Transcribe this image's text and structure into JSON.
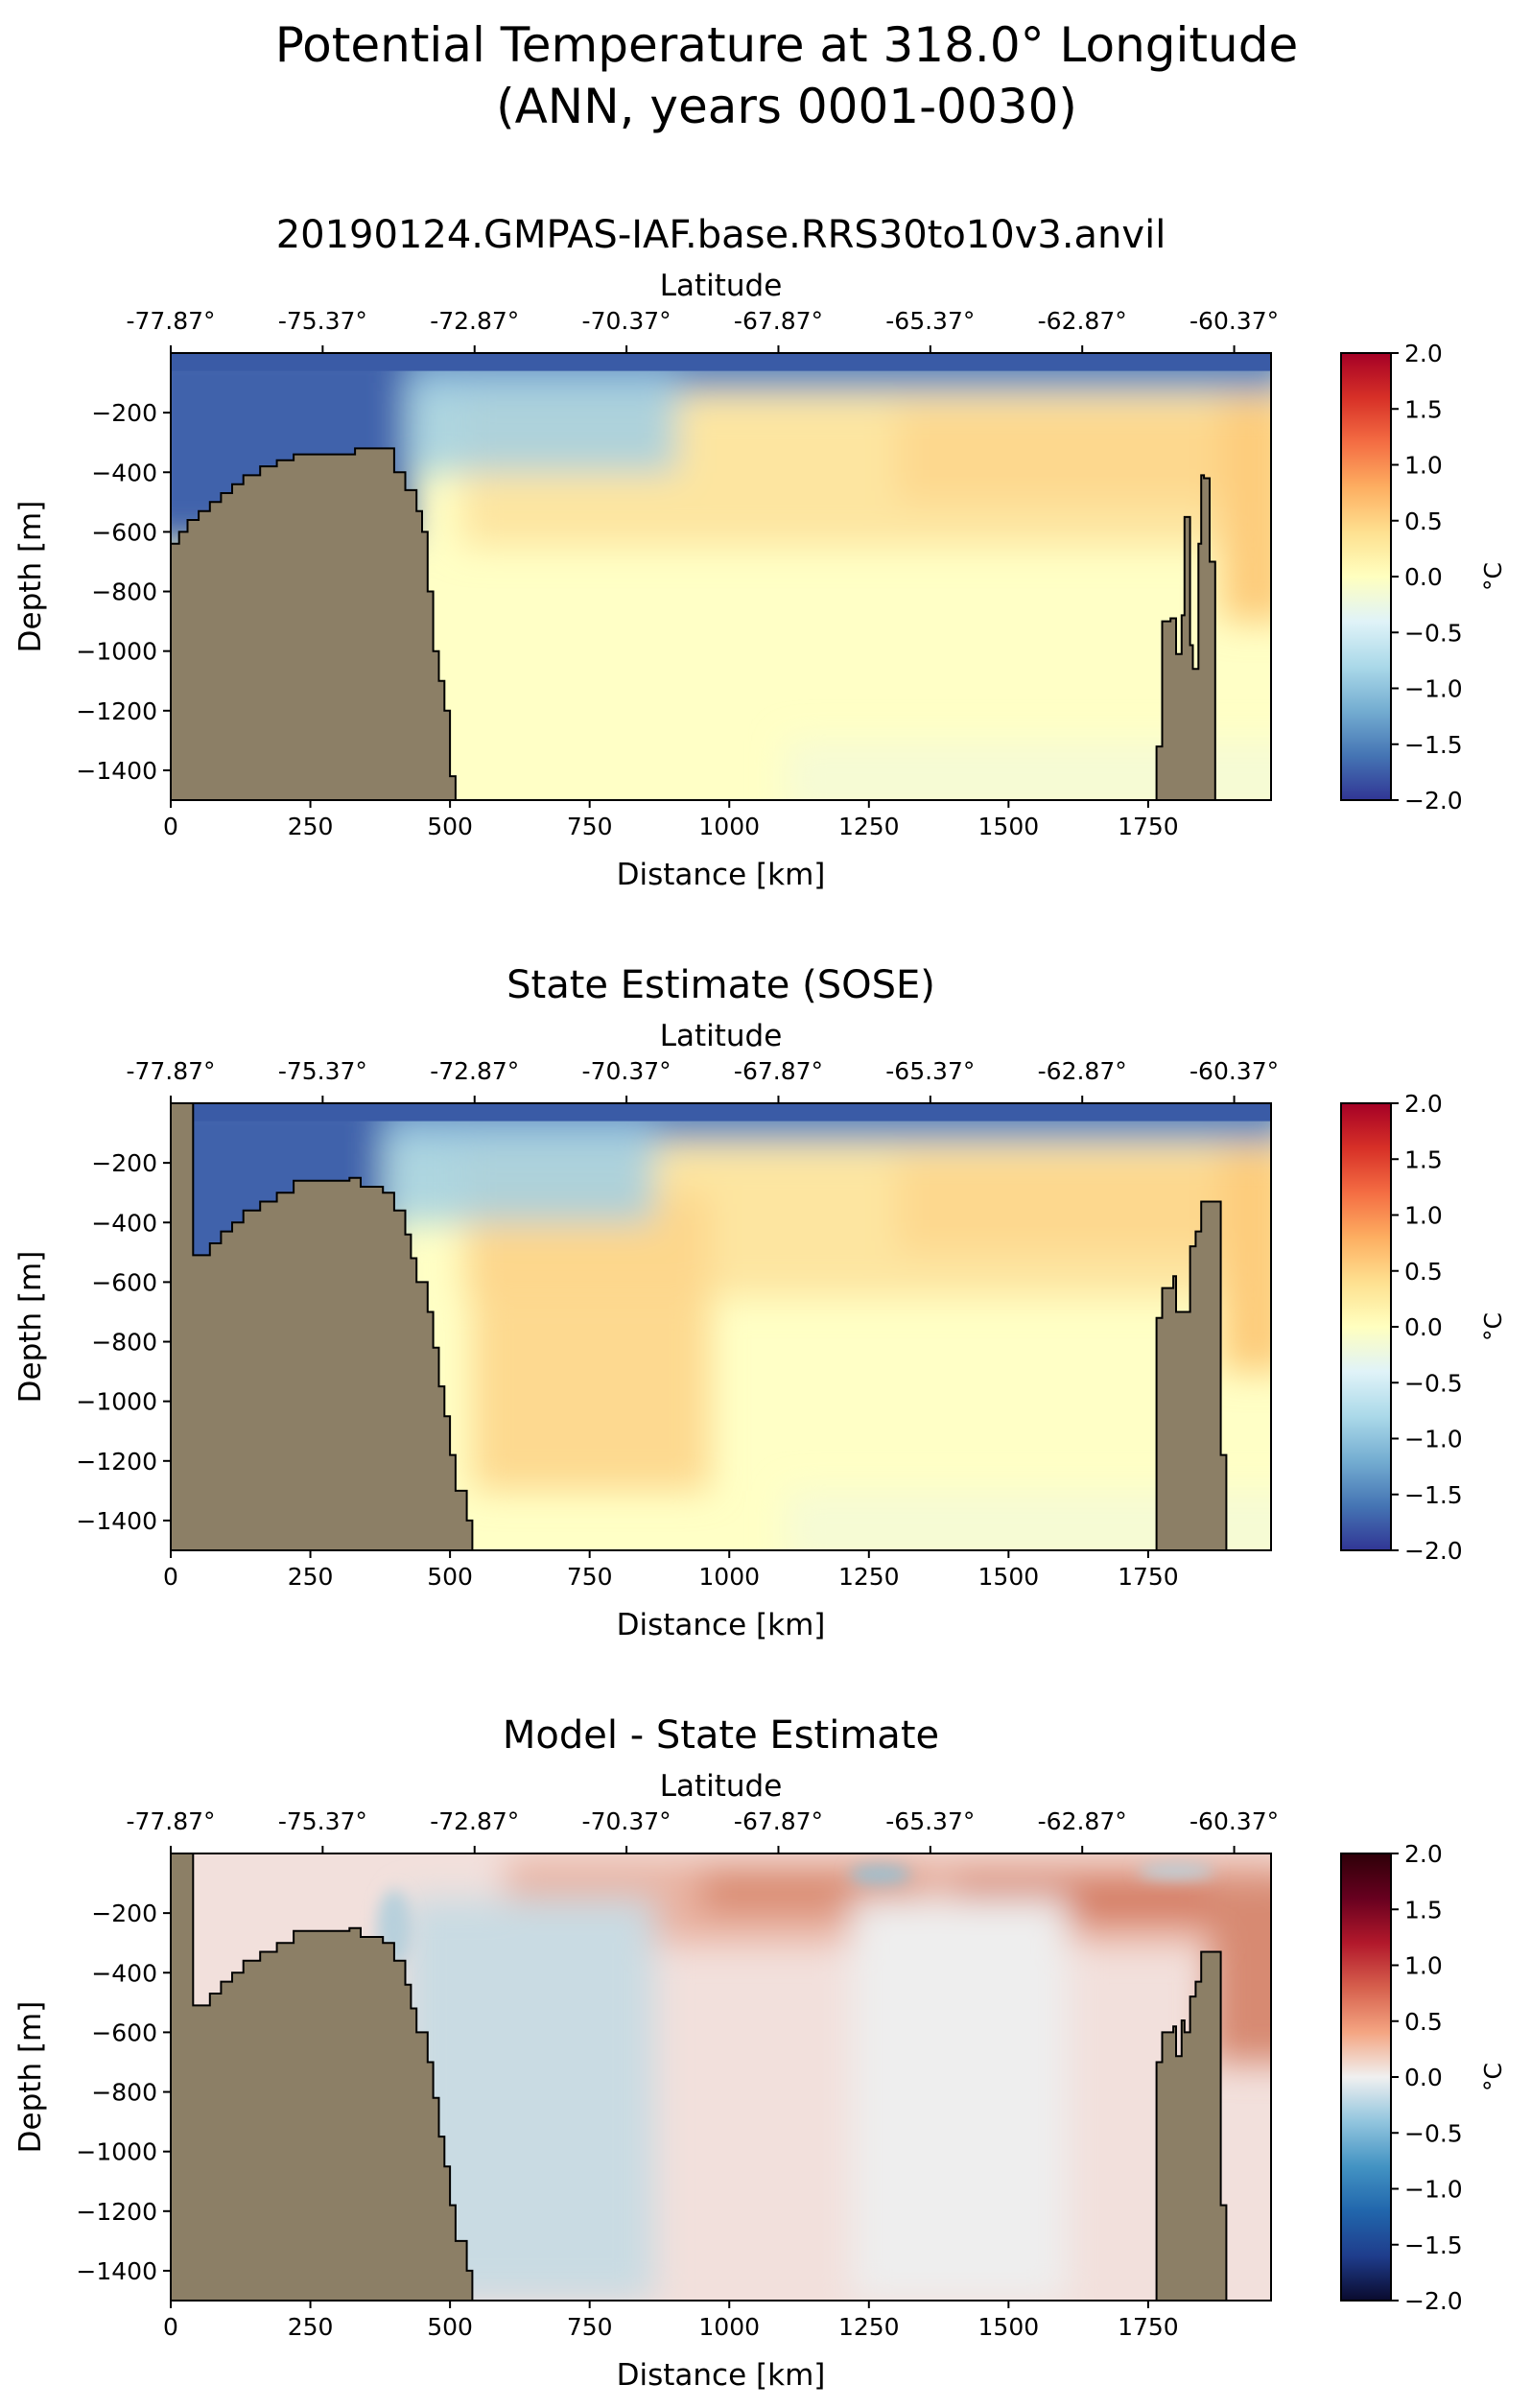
{
  "figure": {
    "title_line1": "Potential Temperature at 318.0° Longitude",
    "title_line2": "(ANN, years 0001-0030)"
  },
  "chart_data": [
    {
      "type": "heatmap",
      "title": "20190124.GMPAS-IAF.base.RRS30to10v3.anvil",
      "xlabel": "Distance [km]",
      "ylabel": "Depth [m]",
      "secondary_xlabel": "Latitude",
      "colorbar_label": "°C",
      "colormap": "RdYlBu_r",
      "xlim": [
        0,
        1970
      ],
      "ylim": [
        -1500,
        0
      ],
      "clim": [
        -2.0,
        2.0
      ],
      "x_ticks": [
        "0",
        "250",
        "500",
        "750",
        "1000",
        "1250",
        "1500",
        "1750"
      ],
      "y_ticks": [
        "−200",
        "−400",
        "−600",
        "−800",
        "−1000",
        "−1200",
        "−1400"
      ],
      "lat_ticks": [
        "-77.87°",
        "-75.37°",
        "-72.87°",
        "-70.37°",
        "-67.87°",
        "-65.37°",
        "-62.87°",
        "-60.37°"
      ],
      "cbar_ticks": [
        "2.0",
        "1.5",
        "1.0",
        "0.5",
        "0.0",
        "−0.5",
        "−1.0",
        "−1.5",
        "−2.0"
      ],
      "bathymetry": {
        "x": [
          0,
          15,
          30,
          50,
          70,
          90,
          110,
          130,
          160,
          190,
          220,
          300,
          330,
          380,
          400,
          420,
          440,
          450,
          460,
          470,
          480,
          490,
          500,
          510,
          1765,
          1775,
          1790,
          1800,
          1810,
          1815,
          1825,
          1830,
          1840,
          1845,
          1850,
          1860,
          1870
        ],
        "depth": [
          -640,
          -600,
          -560,
          -530,
          -500,
          -470,
          -440,
          -410,
          -380,
          -360,
          -340,
          -340,
          -320,
          -320,
          -400,
          -460,
          -530,
          -600,
          -800,
          -1000,
          -1100,
          -1200,
          -1420,
          -1500,
          -1320,
          -900,
          -890,
          -1010,
          -880,
          -550,
          -980,
          -1060,
          -640,
          -410,
          -420,
          -700,
          -1500
        ]
      }
    },
    {
      "type": "heatmap",
      "title": "State Estimate (SOSE)",
      "xlabel": "Distance [km]",
      "ylabel": "Depth [m]",
      "secondary_xlabel": "Latitude",
      "colorbar_label": "°C",
      "colormap": "RdYlBu_r",
      "xlim": [
        0,
        1970
      ],
      "ylim": [
        -1500,
        0
      ],
      "clim": [
        -2.0,
        2.0
      ],
      "x_ticks": [
        "0",
        "250",
        "500",
        "750",
        "1000",
        "1250",
        "1500",
        "1750"
      ],
      "y_ticks": [
        "−200",
        "−400",
        "−600",
        "−800",
        "−1000",
        "−1200",
        "−1400"
      ],
      "lat_ticks": [
        "-77.87°",
        "-75.37°",
        "-72.87°",
        "-70.37°",
        "-67.87°",
        "-65.37°",
        "-62.87°",
        "-60.37°"
      ],
      "cbar_ticks": [
        "2.0",
        "1.5",
        "1.0",
        "0.5",
        "0.0",
        "−0.5",
        "−1.0",
        "−1.5",
        "−2.0"
      ],
      "bathymetry": {
        "x": [
          0,
          40,
          40,
          70,
          90,
          110,
          130,
          160,
          190,
          220,
          320,
          340,
          380,
          400,
          420,
          430,
          440,
          460,
          470,
          480,
          490,
          500,
          510,
          530,
          540,
          1755,
          1765,
          1775,
          1795,
          1800,
          1825,
          1835,
          1845,
          1865,
          1880,
          1890
        ],
        "depth": [
          0,
          0,
          -510,
          -470,
          -430,
          -400,
          -360,
          -330,
          -300,
          -260,
          -250,
          -280,
          -300,
          -360,
          -440,
          -520,
          -600,
          -700,
          -820,
          -950,
          -1050,
          -1180,
          -1300,
          -1400,
          -1500,
          -1500,
          -720,
          -620,
          -580,
          -700,
          -480,
          -430,
          -330,
          -330,
          -1180,
          -1500
        ]
      }
    },
    {
      "type": "heatmap",
      "title": "Model - State Estimate",
      "xlabel": "Distance [km]",
      "ylabel": "Depth [m]",
      "secondary_xlabel": "Latitude",
      "colorbar_label": "°C",
      "colormap": "RdBu_r",
      "xlim": [
        0,
        1970
      ],
      "ylim": [
        -1500,
        0
      ],
      "clim": [
        -2.0,
        2.0
      ],
      "x_ticks": [
        "0",
        "250",
        "500",
        "750",
        "1000",
        "1250",
        "1500",
        "1750"
      ],
      "y_ticks": [
        "−200",
        "−400",
        "−600",
        "−800",
        "−1000",
        "−1200",
        "−1400"
      ],
      "lat_ticks": [
        "-77.87°",
        "-75.37°",
        "-72.87°",
        "-70.37°",
        "-67.87°",
        "-65.37°",
        "-62.87°",
        "-60.37°"
      ],
      "cbar_ticks": [
        "2.0",
        "1.5",
        "1.0",
        "0.5",
        "0.0",
        "−0.5",
        "−1.0",
        "−1.5",
        "−2.0"
      ],
      "bathymetry": {
        "x": [
          0,
          40,
          40,
          70,
          90,
          110,
          130,
          160,
          190,
          220,
          320,
          340,
          380,
          400,
          420,
          430,
          440,
          460,
          470,
          480,
          490,
          500,
          510,
          530,
          540,
          1755,
          1765,
          1775,
          1795,
          1800,
          1810,
          1815,
          1825,
          1835,
          1845,
          1865,
          1880,
          1890
        ],
        "depth": [
          0,
          0,
          -510,
          -470,
          -430,
          -400,
          -360,
          -330,
          -300,
          -260,
          -250,
          -280,
          -300,
          -360,
          -440,
          -520,
          -600,
          -700,
          -820,
          -950,
          -1050,
          -1180,
          -1300,
          -1400,
          -1500,
          -1500,
          -700,
          -600,
          -580,
          -680,
          -560,
          -600,
          -480,
          -430,
          -330,
          -330,
          -1180,
          -1500
        ]
      }
    }
  ]
}
